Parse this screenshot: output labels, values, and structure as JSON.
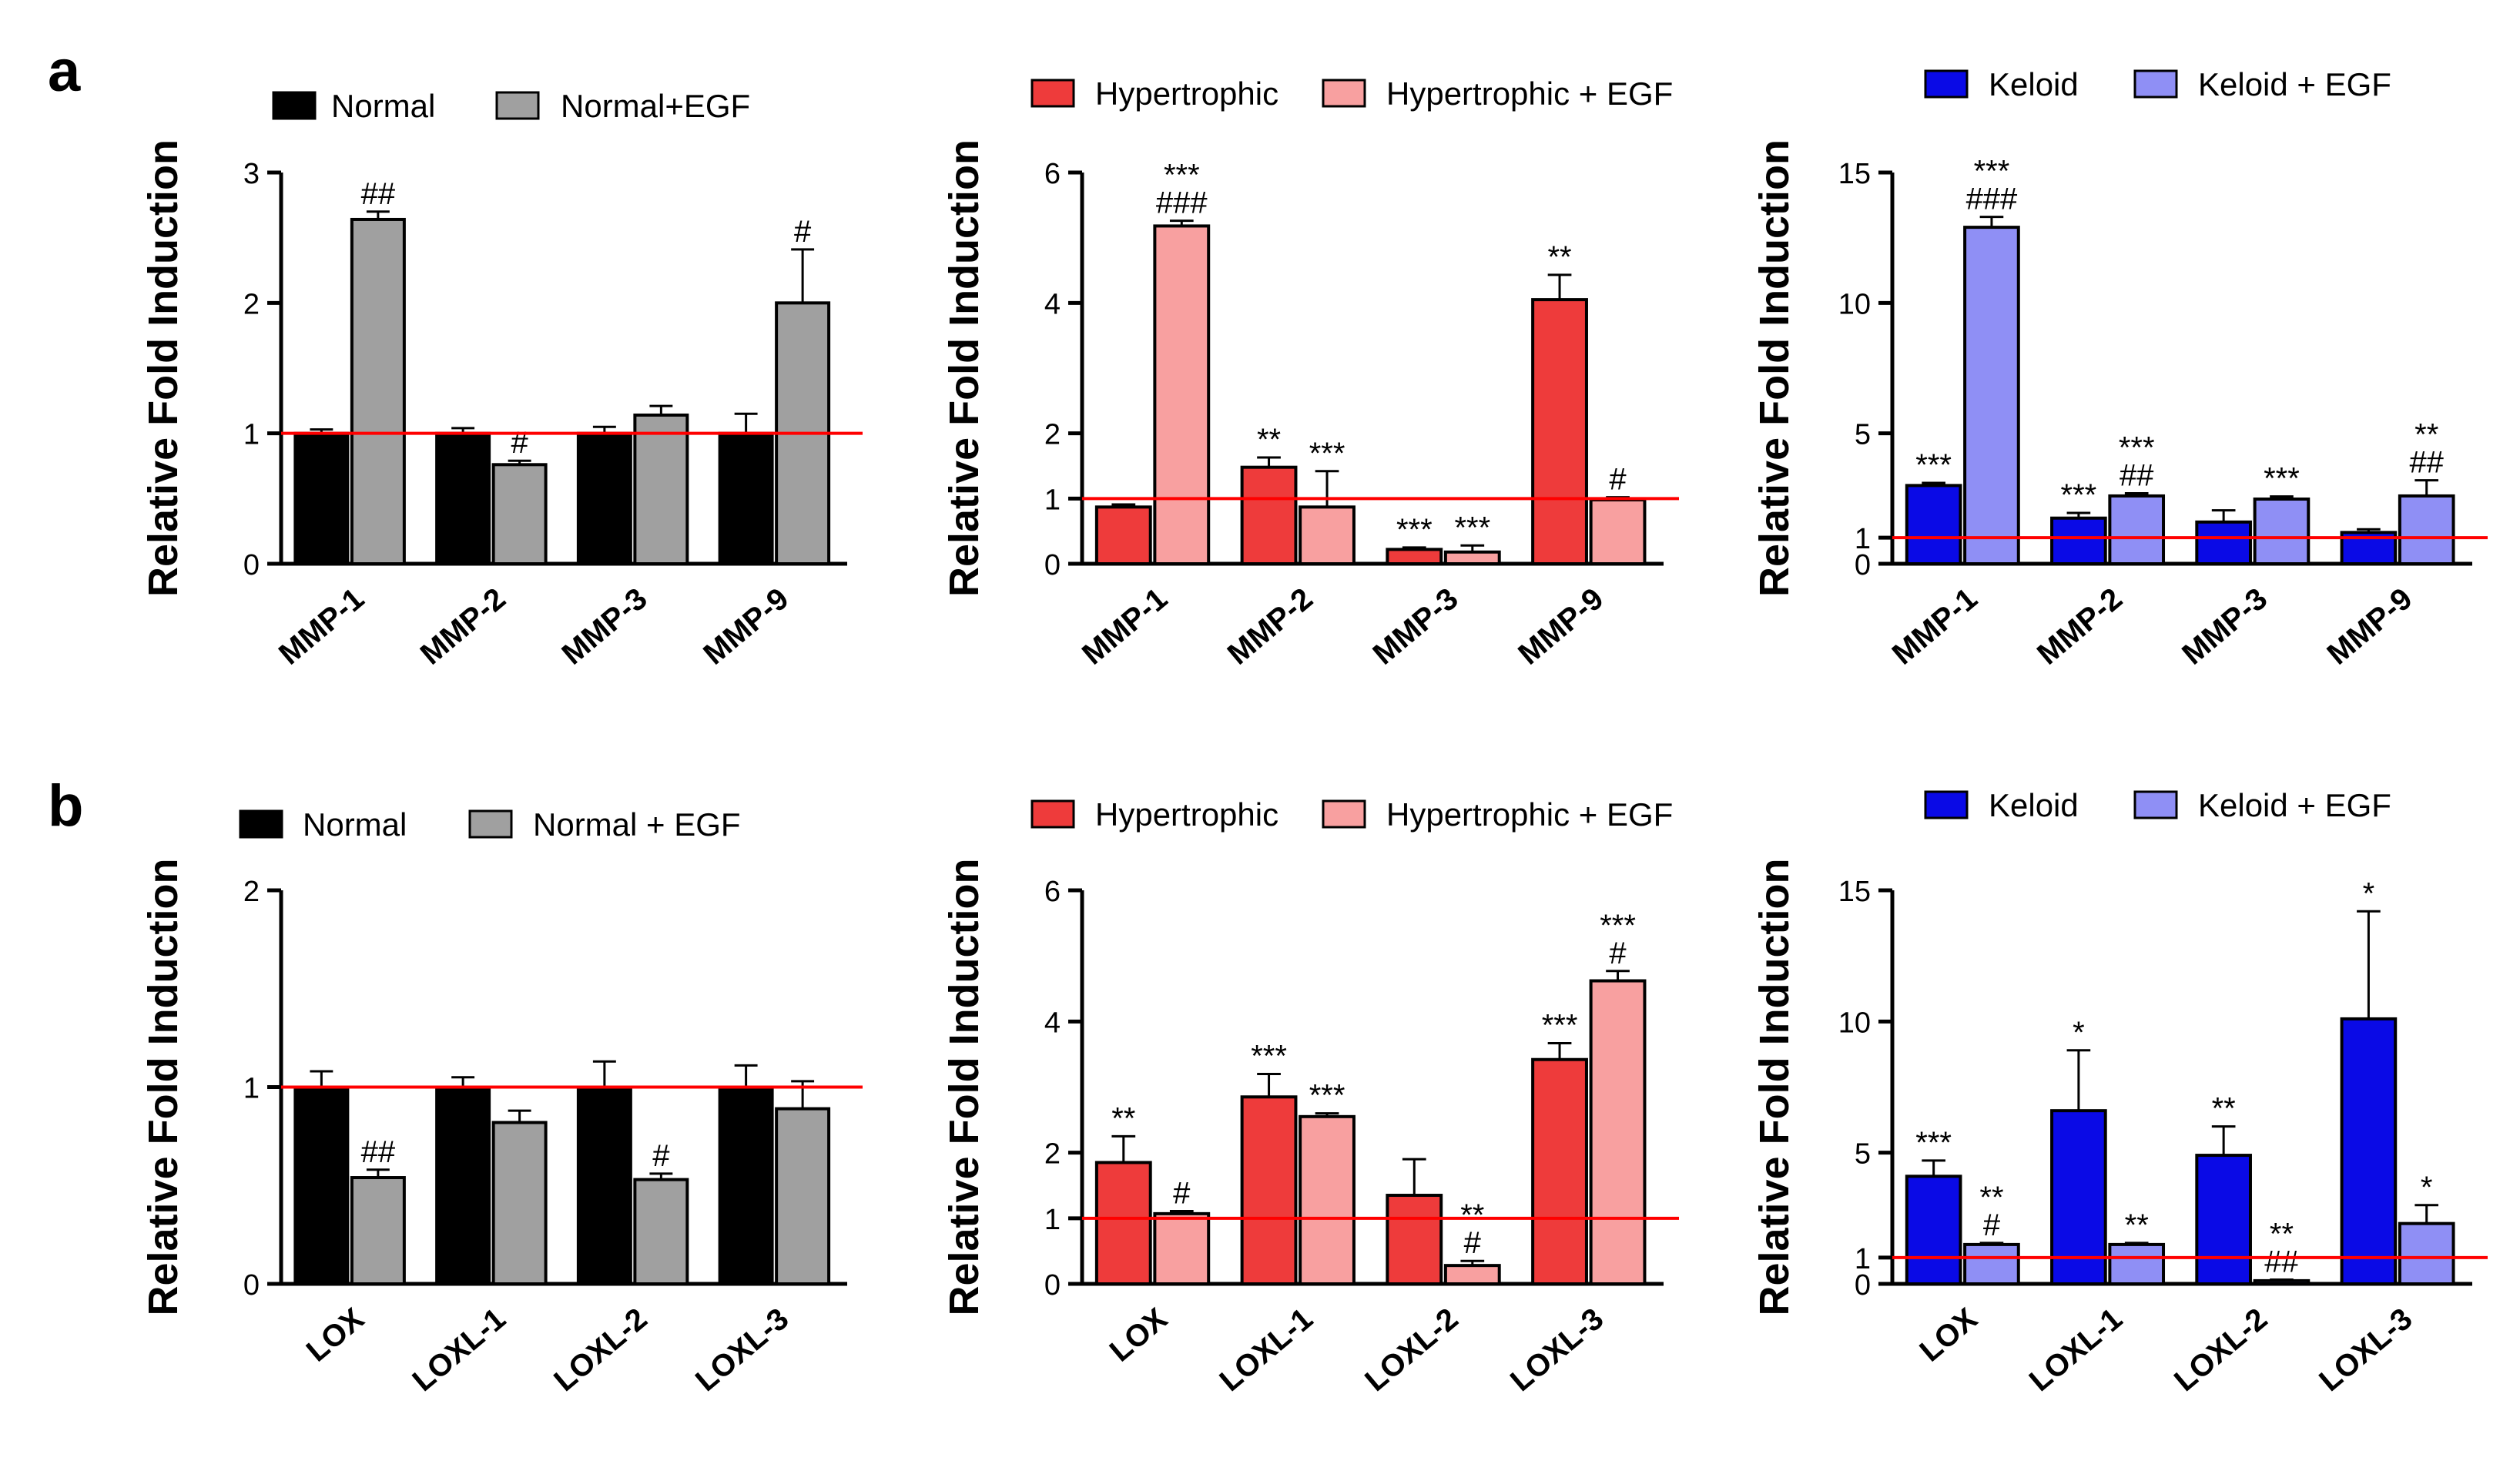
{
  "figure": {
    "panel_labels": [
      "a",
      "b"
    ],
    "colors": {
      "axis": "#000000",
      "reference_line": "#ff0000",
      "normal": "#000000",
      "normal_egf": "#a0a0a0",
      "hypertrophic": "#ee3b3b",
      "hypertrophic_egf": "#f8a0a0",
      "keloid": "#0a0ae6",
      "keloid_egf": "#8f8ff5"
    }
  },
  "chart_data": [
    {
      "id": "a-normal",
      "type": "bar",
      "panel": "a",
      "ylabel": "Relative Fold Induction",
      "ylim": [
        0,
        3
      ],
      "yticks": [
        0,
        1,
        2,
        3
      ],
      "reference_line": 1,
      "categories": [
        "MMP-1",
        "MMP-2",
        "MMP-3",
        "MMP-9"
      ],
      "series": [
        {
          "name": "Normal",
          "color": "#000000",
          "values": [
            1.0,
            1.0,
            1.0,
            1.0
          ],
          "errors": [
            0.03,
            0.04,
            0.05,
            0.15
          ],
          "annotations": [
            "",
            "",
            "",
            ""
          ]
        },
        {
          "name": "Normal+EGF",
          "color": "#a0a0a0",
          "values": [
            2.64,
            0.76,
            1.14,
            2.0
          ],
          "errors": [
            0.06,
            0.03,
            0.07,
            0.41
          ],
          "annotations": [
            "##",
            "#",
            "",
            "#"
          ]
        }
      ]
    },
    {
      "id": "a-hypertrophic",
      "type": "bar",
      "panel": "a",
      "ylabel": "Relative Fold Induction",
      "ylim": [
        0,
        6
      ],
      "yticks": [
        0,
        1,
        2,
        4,
        6
      ],
      "reference_line": 1,
      "categories": [
        "MMP-1",
        "MMP-2",
        "MMP-3",
        "MMP-9"
      ],
      "series": [
        {
          "name": "Hypertrophic",
          "color": "#ee3b3b",
          "values": [
            0.87,
            1.48,
            0.22,
            4.05
          ],
          "errors": [
            0.04,
            0.15,
            0.03,
            0.38
          ],
          "annotations": [
            "",
            "**",
            "***",
            "**"
          ]
        },
        {
          "name": "Hypertrophic + EGF",
          "color": "#f8a0a0",
          "values": [
            5.18,
            0.87,
            0.18,
            0.98
          ],
          "errors": [
            0.08,
            0.55,
            0.1,
            0.04
          ],
          "annotations": [
            "***\n###",
            "***",
            "***",
            "#"
          ]
        }
      ]
    },
    {
      "id": "a-keloid",
      "type": "bar",
      "panel": "a",
      "ylabel": "Relative Fold Induction",
      "ylim": [
        0,
        15
      ],
      "yticks": [
        0,
        1,
        5,
        10,
        15
      ],
      "reference_line": 1,
      "categories": [
        "MMP-1",
        "MMP-2",
        "MMP-3",
        "MMP-9"
      ],
      "series": [
        {
          "name": "Keloid",
          "color": "#0a0ae6",
          "values": [
            3.0,
            1.75,
            1.6,
            1.2
          ],
          "errors": [
            0.1,
            0.2,
            0.45,
            0.12
          ],
          "annotations": [
            "***",
            "***",
            "",
            ""
          ]
        },
        {
          "name": "Keloid + EGF",
          "color": "#8f8ff5",
          "values": [
            12.9,
            2.6,
            2.48,
            2.6
          ],
          "errors": [
            0.4,
            0.1,
            0.1,
            0.6
          ],
          "annotations": [
            "***\n###",
            "***\n##",
            "***",
            "**\n##"
          ]
        }
      ]
    },
    {
      "id": "b-normal",
      "type": "bar",
      "panel": "b",
      "ylabel": "Relative Fold Induction",
      "ylim": [
        0,
        2
      ],
      "yticks": [
        0,
        1,
        2
      ],
      "reference_line": 1,
      "categories": [
        "LOX",
        "LOXL-1",
        "LOXL-2",
        "LOXL-3"
      ],
      "series": [
        {
          "name": "Normal",
          "color": "#000000",
          "values": [
            1.0,
            1.0,
            1.0,
            1.0
          ],
          "errors": [
            0.08,
            0.05,
            0.13,
            0.11
          ],
          "annotations": [
            "",
            "",
            "",
            ""
          ]
        },
        {
          "name": "Normal + EGF",
          "color": "#a0a0a0",
          "values": [
            0.54,
            0.82,
            0.53,
            0.89
          ],
          "errors": [
            0.04,
            0.06,
            0.03,
            0.14
          ],
          "annotations": [
            "##",
            "",
            "#",
            ""
          ]
        }
      ]
    },
    {
      "id": "b-hypertrophic",
      "type": "bar",
      "panel": "b",
      "ylabel": "Relative Fold Induction",
      "ylim": [
        0,
        6
      ],
      "yticks": [
        0,
        1,
        2,
        4,
        6
      ],
      "reference_line": 1,
      "categories": [
        "LOX",
        "LOXL-1",
        "LOXL-2",
        "LOXL-3"
      ],
      "series": [
        {
          "name": "Hypertrophic",
          "color": "#ee3b3b",
          "values": [
            1.85,
            2.85,
            1.35,
            3.42
          ],
          "errors": [
            0.4,
            0.35,
            0.55,
            0.25
          ],
          "annotations": [
            "**",
            "***",
            "",
            "***"
          ]
        },
        {
          "name": "Hypertrophic + EGF",
          "color": "#f8a0a0",
          "values": [
            1.07,
            2.55,
            0.28,
            4.62
          ],
          "errors": [
            0.04,
            0.05,
            0.07,
            0.15
          ],
          "annotations": [
            "#",
            "***",
            "**\n#",
            "***\n#"
          ]
        }
      ]
    },
    {
      "id": "b-keloid",
      "type": "bar",
      "panel": "b",
      "ylabel": "Relative Fold Induction",
      "ylim": [
        0,
        15
      ],
      "yticks": [
        0,
        1,
        5,
        10,
        15
      ],
      "reference_line": 1,
      "categories": [
        "LOX",
        "LOXL-1",
        "LOXL-2",
        "LOXL-3"
      ],
      "series": [
        {
          "name": "Keloid",
          "color": "#0a0ae6",
          "values": [
            4.1,
            6.6,
            4.9,
            10.1
          ],
          "errors": [
            0.6,
            2.3,
            1.1,
            4.1
          ],
          "annotations": [
            "***",
            "*",
            "**",
            "*"
          ]
        },
        {
          "name": "Keloid + EGF",
          "color": "#8f8ff5",
          "values": [
            1.5,
            1.5,
            0.12,
            2.3
          ],
          "errors": [
            0.06,
            0.06,
            0.04,
            0.7
          ],
          "annotations": [
            "**\n#",
            "**",
            "**\n##",
            "*"
          ]
        }
      ]
    }
  ]
}
